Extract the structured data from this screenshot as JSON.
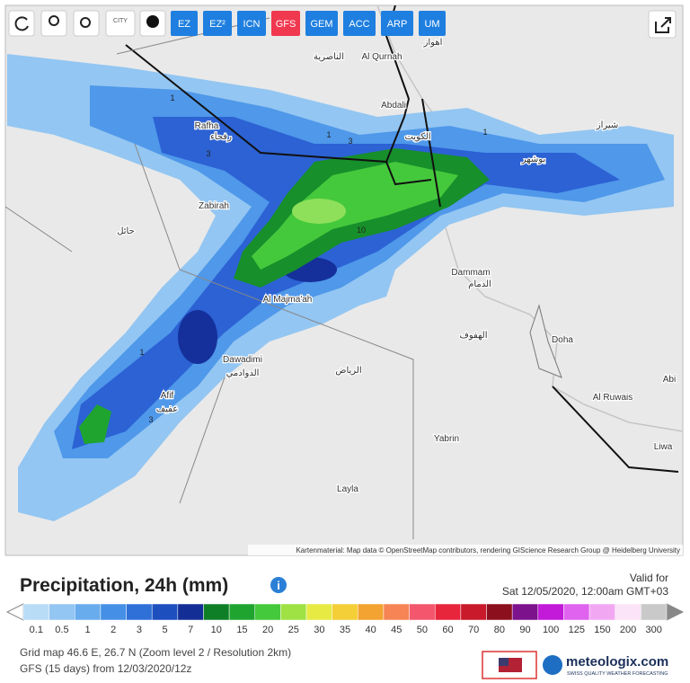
{
  "toolbar": {
    "city_icon": "CITY",
    "buttons": [
      "EZ",
      "EZ²",
      "ICN",
      "GFS",
      "GEM",
      "ACC",
      "ARP",
      "UM"
    ],
    "active": "GFS"
  },
  "map": {
    "labels": [
      "Rafha",
      "Zabirah",
      "Al Majma'ah",
      "Dawadimi",
      "Afif",
      "Dammam",
      "Doha",
      "Al Ruwais",
      "Yabrin",
      "Layla",
      "Abdali",
      "Al Qurnah",
      "Abi",
      "Liwa",
      "الكويت",
      "الرياض",
      "الدمام",
      "الهفوف",
      "حائل",
      "عفيف",
      "الدوادمي",
      "رفحاء",
      "شيراز",
      "بوشهر",
      "اهواز",
      "الناصرية"
    ],
    "contours": [
      1,
      3,
      10,
      1,
      3,
      1,
      1,
      3
    ],
    "attribution": "Kartenmaterial: Map data © OpenStreetMap contributors, rendering GIScience Research Group @ Heidelberg University"
  },
  "legend": {
    "title": "Precipitation, 24h (mm)",
    "valid_for": "Valid for",
    "valid_time": "Sat 12/05/2020, 12:00am GMT+03",
    "scale": [
      {
        "value": 0.1,
        "color": "#b9dcf6"
      },
      {
        "value": 0.5,
        "color": "#93c6f2"
      },
      {
        "value": 1,
        "color": "#68acee"
      },
      {
        "value": 2,
        "color": "#4590e6"
      },
      {
        "value": 3,
        "color": "#2f70d8"
      },
      {
        "value": 5,
        "color": "#1d4fbf"
      },
      {
        "value": 7,
        "color": "#132f96"
      },
      {
        "value": 10,
        "color": "#0f7f27"
      },
      {
        "value": 15,
        "color": "#1fa52f"
      },
      {
        "value": 20,
        "color": "#45c93c"
      },
      {
        "value": 25,
        "color": "#9ee244"
      },
      {
        "value": 30,
        "color": "#e6ea43"
      },
      {
        "value": 35,
        "color": "#f5cf38"
      },
      {
        "value": 40,
        "color": "#f2a331"
      },
      {
        "value": 45,
        "color": "#f68454"
      },
      {
        "value": 50,
        "color": "#f4576d"
      },
      {
        "value": 60,
        "color": "#e8263b"
      },
      {
        "value": 70,
        "color": "#c81a2a"
      },
      {
        "value": 80,
        "color": "#8c0f1d"
      },
      {
        "value": 90,
        "color": "#7c128c"
      },
      {
        "value": 100,
        "color": "#c21ad8"
      },
      {
        "value": 125,
        "color": "#e063ef"
      },
      {
        "value": 150,
        "color": "#f2a7f3"
      },
      {
        "value": 200,
        "color": "#fbe3f8"
      },
      {
        "value": 300,
        "color": "#c9c9c9"
      }
    ]
  },
  "footer": {
    "grid_info": "Grid map 46.6 E, 26.7 N (Zoom level 2 / Resolution 2km)",
    "model_info": "GFS (15 days) from 12/03/2020/12z"
  },
  "brand": {
    "name": "meteologix.com",
    "tagline": "SWISS QUALITY WEATHER FORECASTING"
  }
}
